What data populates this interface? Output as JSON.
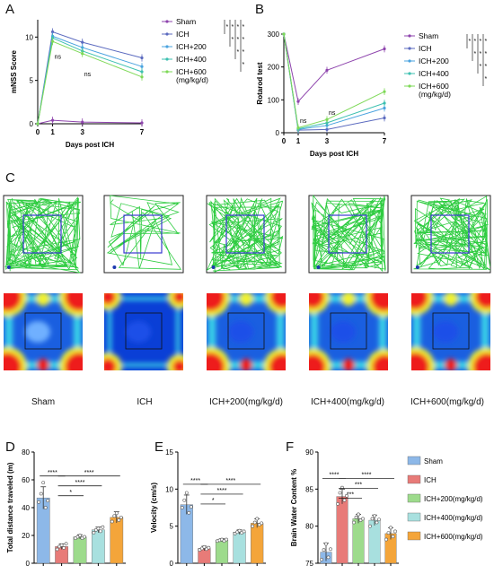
{
  "colors": {
    "sham": "#8e44ad",
    "ich": "#5b6abf",
    "ich200": "#4aa3df",
    "ich400": "#3cc0b0",
    "ich600": "#7ed957",
    "bar_sham": "#8db8e8",
    "bar_ich": "#e87b78",
    "bar_ich200": "#9ddb8c",
    "bar_ich400": "#a8e0df",
    "bar_ich600": "#f4a53a",
    "track_path": "#2ecc40",
    "zone": "#3a3ad0"
  },
  "panels": {
    "A": "A",
    "B": "B",
    "C": "C",
    "D": "D",
    "E": "E",
    "F": "F"
  },
  "panelC": {
    "groups": [
      "Sham",
      "ICH",
      "ICH+200(mg/kg/d)",
      "ICH+400(mg/kg/d)",
      "ICH+600(mg/kg/d)"
    ]
  },
  "chart_data": [
    {
      "id": "A",
      "type": "line",
      "title": "",
      "xlabel": "Days post ICH",
      "ylabel": "mNSS Score",
      "x": [
        0,
        1,
        3,
        7
      ],
      "xticks": [
        "0",
        "1",
        "3",
        "7"
      ],
      "ylim": [
        0,
        12
      ],
      "yticks": [
        0,
        5,
        10
      ],
      "legend_position": "right",
      "series": [
        {
          "name": "Sham",
          "values": [
            0,
            0.4,
            0.2,
            0.1
          ],
          "color_key": "sham"
        },
        {
          "name": "ICH",
          "values": [
            0,
            10.6,
            9.4,
            7.6
          ],
          "color_key": "ich"
        },
        {
          "name": "ICH+200",
          "values": [
            0,
            10.1,
            8.8,
            6.6
          ],
          "color_key": "ich200"
        },
        {
          "name": "ICH+400",
          "values": [
            0,
            9.9,
            8.4,
            6.0
          ],
          "color_key": "ich400"
        },
        {
          "name": "ICH+600",
          "values": [
            0,
            9.5,
            8.1,
            5.4
          ],
          "color_key": "ich600"
        }
      ],
      "legend_extra": "(mg/kg/d)",
      "annotations": [
        {
          "text": "ns",
          "x": 1,
          "y": 7.5
        },
        {
          "text": "ns",
          "x": 3,
          "y": 5.5
        }
      ],
      "sig_stars": [
        "*",
        "*",
        "*",
        "*",
        "*",
        "*",
        "*",
        "*",
        "*",
        "*"
      ]
    },
    {
      "id": "B",
      "type": "line",
      "title": "",
      "xlabel": "Days post ICH",
      "ylabel": "Rotarod test",
      "x": [
        0,
        1,
        3,
        7
      ],
      "xticks": [
        "0",
        "1",
        "3",
        "7"
      ],
      "ylim": [
        0,
        300
      ],
      "yticks": [
        0,
        100,
        200,
        300
      ],
      "legend_position": "right",
      "series": [
        {
          "name": "Sham",
          "values": [
            300,
            95,
            190,
            255
          ],
          "color_key": "sham"
        },
        {
          "name": "ICH",
          "values": [
            300,
            8,
            10,
            45
          ],
          "color_key": "ich"
        },
        {
          "name": "ICH+200",
          "values": [
            300,
            10,
            22,
            75
          ],
          "color_key": "ich200"
        },
        {
          "name": "ICH+400",
          "values": [
            300,
            12,
            30,
            90
          ],
          "color_key": "ich400"
        },
        {
          "name": "ICH+600",
          "values": [
            300,
            15,
            40,
            125
          ],
          "color_key": "ich600"
        }
      ],
      "legend_extra": "(mg/kg/d)",
      "annotations": [
        {
          "text": "ns",
          "x": 1,
          "y": 30
        },
        {
          "text": "ns",
          "x": 3,
          "y": 55
        }
      ],
      "sig_stars": [
        "*",
        "*",
        "*",
        "*",
        "*",
        "*",
        "*",
        "*",
        "*",
        "*"
      ]
    },
    {
      "id": "D",
      "type": "bar",
      "title": "",
      "xlabel": "",
      "ylabel": "Total distance traveled (m)",
      "categories": [
        "Sham",
        "ICH",
        "ICH+200",
        "ICH+400",
        "ICH+600"
      ],
      "values": [
        47,
        12,
        19,
        24,
        33
      ],
      "errors": [
        8,
        2,
        1.5,
        2,
        4
      ],
      "points": [
        [
          44,
          50,
          58,
          40,
          45
        ],
        [
          10,
          12,
          13,
          11,
          14
        ],
        [
          18,
          19,
          20,
          18,
          19
        ],
        [
          22,
          24,
          25,
          23,
          26
        ],
        [
          30,
          34,
          36,
          31,
          33
        ]
      ],
      "ylim": [
        0,
        80
      ],
      "yticks": [
        0,
        20,
        40,
        60,
        80
      ],
      "sig": [
        {
          "from": 0,
          "to": 1,
          "label": "****"
        },
        {
          "from": 1,
          "to": 2,
          "label": "*"
        },
        {
          "from": 1,
          "to": 3,
          "label": "****"
        },
        {
          "from": 1,
          "to": 4,
          "label": "****"
        }
      ]
    },
    {
      "id": "E",
      "type": "bar",
      "title": "",
      "xlabel": "",
      "ylabel": "Velocity (cm/s)",
      "categories": [
        "Sham",
        "ICH",
        "ICH+200",
        "ICH+400",
        "ICH+600"
      ],
      "values": [
        7.9,
        2.0,
        3.1,
        4.2,
        5.4
      ],
      "errors": [
        1.3,
        0.3,
        0.2,
        0.3,
        0.6
      ],
      "points": [
        [
          7.5,
          8.5,
          9.5,
          6.8,
          7.6
        ],
        [
          1.8,
          2.0,
          2.2,
          1.9,
          2.1
        ],
        [
          3.0,
          3.1,
          3.2,
          3.0,
          3.2
        ],
        [
          4.0,
          4.2,
          4.4,
          4.1,
          4.3
        ],
        [
          5.0,
          5.5,
          6.0,
          5.2,
          5.4
        ]
      ],
      "ylim": [
        0,
        15
      ],
      "yticks": [
        0,
        5,
        10,
        15
      ],
      "sig": [
        {
          "from": 0,
          "to": 1,
          "label": "****"
        },
        {
          "from": 1,
          "to": 2,
          "label": "*"
        },
        {
          "from": 1,
          "to": 3,
          "label": "****"
        },
        {
          "from": 1,
          "to": 4,
          "label": "****"
        }
      ]
    },
    {
      "id": "F",
      "type": "bar",
      "title": "",
      "xlabel": "",
      "ylabel": "Brain Water Content %",
      "categories": [
        "Sham",
        "ICH",
        "ICH+200(mg/kg/d)",
        "ICH+400(mg/kg/d)",
        "ICH+600(mg/kg/d)"
      ],
      "values": [
        76.5,
        84.0,
        81.0,
        80.8,
        79.0
      ],
      "errors": [
        1.2,
        1.0,
        0.6,
        0.7,
        0.8
      ],
      "points": [
        [
          75.5,
          76.8,
          77.6,
          75.8,
          76.9
        ],
        [
          83.0,
          84.5,
          85.2,
          83.5,
          84.1
        ],
        [
          80.5,
          81.2,
          81.6,
          80.8,
          81.0
        ],
        [
          80.0,
          81.0,
          81.4,
          80.5,
          80.9
        ],
        [
          78.2,
          79.1,
          79.8,
          78.6,
          79.3
        ]
      ],
      "ylim": [
        75,
        90
      ],
      "yticks": [
        75,
        80,
        85,
        90
      ],
      "legend_position": "right",
      "sig": [
        {
          "from": 0,
          "to": 1,
          "label": "****"
        },
        {
          "from": 1,
          "to": 2,
          "label": "***"
        },
        {
          "from": 1,
          "to": 3,
          "label": "***"
        },
        {
          "from": 1,
          "to": 4,
          "label": "****"
        }
      ]
    }
  ]
}
